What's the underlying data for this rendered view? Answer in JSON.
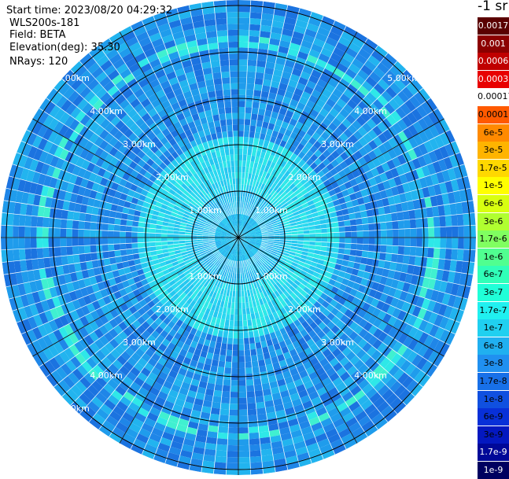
{
  "header": {
    "start_time": "Start time: 2023/08/20 04:29:32",
    "device": "WLS200s-181",
    "field": "Field: BETA",
    "elevation": "Elevation(deg): 35.30",
    "nrays": "NRays: 120"
  },
  "units": "-1 sr",
  "colors": {
    "background_blue": "#1b73e0",
    "cyan": "#22e6f0",
    "green": "#3cf58a",
    "grid": "#000000",
    "ray_lines": "#ffffff"
  },
  "range_rings": [
    "1.00km",
    "2.00km",
    "3.00km",
    "4.00km",
    "5.00km"
  ],
  "legend": [
    {
      "label": "0.0017",
      "color": "#5a0000",
      "text": "#ffffff"
    },
    {
      "label": "0.001",
      "color": "#8c0000",
      "text": "#ffffff"
    },
    {
      "label": "0.0006",
      "color": "#c00000",
      "text": "#ffffff"
    },
    {
      "label": "0.0003",
      "color": "#e80000",
      "text": "#ffffff"
    },
    {
      "label": "0.00017",
      "color": "#ff2200",
      "text": "#000000"
    },
    {
      "label": "0.0001",
      "color": "#ff5a00",
      "text": "#000000"
    },
    {
      "label": "6e-5",
      "color": "#ff8a00",
      "text": "#000000"
    },
    {
      "label": "3e-5",
      "color": "#ffb400",
      "text": "#000000"
    },
    {
      "label": "1.7e-5",
      "color": "#ffd800",
      "text": "#000000"
    },
    {
      "label": "1e-5",
      "color": "#ffff00",
      "text": "#000000"
    },
    {
      "label": "6e-6",
      "color": "#d8ff10",
      "text": "#000000"
    },
    {
      "label": "3e-6",
      "color": "#b0ff30",
      "text": "#000000"
    },
    {
      "label": "1.7e-6",
      "color": "#80ff60",
      "text": "#000000"
    },
    {
      "label": "1e-6",
      "color": "#50ff90",
      "text": "#000000"
    },
    {
      "label": "6e-7",
      "color": "#30ffb8",
      "text": "#000000"
    },
    {
      "label": "3e-7",
      "color": "#20ffd8",
      "text": "#000000"
    },
    {
      "label": "1.7e-7",
      "color": "#20f0f0",
      "text": "#000000"
    },
    {
      "label": "1e-7",
      "color": "#20d0f0",
      "text": "#000000"
    },
    {
      "label": "6e-8",
      "color": "#20b0f0",
      "text": "#000000"
    },
    {
      "label": "3e-8",
      "color": "#2090f0",
      "text": "#000000"
    },
    {
      "label": "1.7e-8",
      "color": "#1870e8",
      "text": "#000000"
    },
    {
      "label": "1e-8",
      "color": "#1050e0",
      "text": "#000000"
    },
    {
      "label": "6e-9",
      "color": "#0830d8",
      "text": "#000000"
    },
    {
      "label": "3e-9",
      "color": "#0418c0",
      "text": "#000000"
    },
    {
      "label": "1.7e-9",
      "color": "#000898",
      "text": "#ffffff"
    },
    {
      "label": "1e-9",
      "color": "#000060",
      "text": "#ffffff"
    }
  ]
}
